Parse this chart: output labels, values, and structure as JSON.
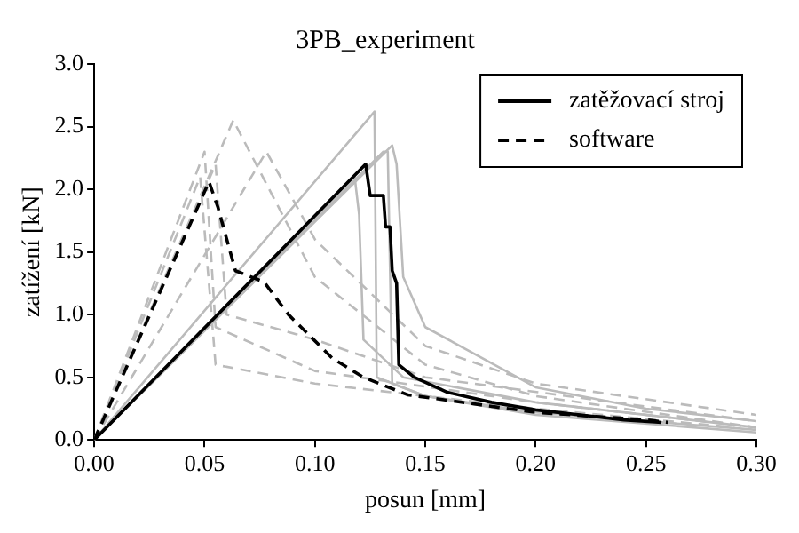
{
  "chart_data": {
    "type": "line",
    "title": "3PB_experiment",
    "xlabel": "posun [mm]",
    "ylabel": "zatížení [kN]",
    "xlim": [
      0,
      0.3
    ],
    "ylim": [
      0,
      3.0
    ],
    "xticks": [
      {
        "value": 0,
        "label": "0.00"
      },
      {
        "value": 0.05,
        "label": "0.05"
      },
      {
        "value": 0.1,
        "label": "0.10"
      },
      {
        "value": 0.15,
        "label": "0.15"
      },
      {
        "value": 0.2,
        "label": "0.20"
      },
      {
        "value": 0.25,
        "label": "0.25"
      },
      {
        "value": 0.3,
        "label": "0.30"
      }
    ],
    "yticks": [
      {
        "value": 0,
        "label": "0.0"
      },
      {
        "value": 0.5,
        "label": "0.5"
      },
      {
        "value": 1,
        "label": "1.0"
      },
      {
        "value": 1.5,
        "label": "1.5"
      },
      {
        "value": 2,
        "label": "2.0"
      },
      {
        "value": 2.5,
        "label": "2.5"
      },
      {
        "value": 3,
        "label": "3.0"
      }
    ],
    "grid": false,
    "legend": "top right",
    "marker": "none",
    "series": [
      {
        "color": "#bbbbbb",
        "line_style": "solid",
        "x": [
          0,
          0.127,
          0.128,
          0.15,
          0.2,
          0.3
        ],
        "values": [
          0,
          2.62,
          0.5,
          0.35,
          0.22,
          0.08
        ]
      },
      {
        "color": "#bbbbbb",
        "line_style": "solid",
        "x": [
          0,
          0.131,
          0.133,
          0.135,
          0.15,
          0.2,
          0.3
        ],
        "values": [
          0,
          2.3,
          2.3,
          0.45,
          0.35,
          0.2,
          0.06
        ]
      },
      {
        "color": "#bbbbbb",
        "line_style": "solid",
        "x": [
          0,
          0.135,
          0.137,
          0.14,
          0.15,
          0.2,
          0.25,
          0.3
        ],
        "values": [
          0,
          2.35,
          2.2,
          1.3,
          0.9,
          0.42,
          0.25,
          0.15
        ]
      },
      {
        "color": "#bbbbbb",
        "line_style": "solid",
        "x": [
          0,
          0.118,
          0.12,
          0.122,
          0.14,
          0.2,
          0.3
        ],
        "values": [
          0,
          2.1,
          1.8,
          0.8,
          0.5,
          0.3,
          0.1
        ]
      },
      {
        "color": "#bbbbbb",
        "line_style": "dashed",
        "x": [
          0,
          0.063,
          0.1,
          0.15,
          0.2,
          0.3
        ],
        "values": [
          0,
          2.55,
          1.3,
          0.6,
          0.35,
          0.1
        ]
      },
      {
        "color": "#bbbbbb",
        "line_style": "dashed",
        "x": [
          0,
          0.05,
          0.055,
          0.1,
          0.2,
          0.3
        ],
        "values": [
          0,
          2.3,
          0.9,
          0.55,
          0.3,
          0.1
        ]
      },
      {
        "color": "#bbbbbb",
        "line_style": "dashed",
        "x": [
          0,
          0.078,
          0.1,
          0.15,
          0.2,
          0.3
        ],
        "values": [
          0,
          2.3,
          1.6,
          0.75,
          0.45,
          0.2
        ]
      },
      {
        "color": "#bbbbbb",
        "line_style": "dashed",
        "x": [
          0,
          0.055,
          0.06,
          0.1,
          0.15,
          0.3
        ],
        "values": [
          0,
          2.2,
          1.0,
          0.8,
          0.5,
          0.15
        ]
      },
      {
        "color": "#bbbbbb",
        "line_style": "dashed",
        "x": [
          0,
          0.048,
          0.055,
          0.1,
          0.2,
          0.29
        ],
        "values": [
          0,
          2.1,
          0.6,
          0.45,
          0.25,
          0.1
        ]
      },
      {
        "name": "zatěžovací stroj",
        "color": "#000000",
        "line_style": "solid",
        "x": [
          0,
          0.123,
          0.125,
          0.131,
          0.132,
          0.134,
          0.135,
          0.137,
          0.138,
          0.145,
          0.16,
          0.18,
          0.2,
          0.22,
          0.24,
          0.257
        ],
        "values": [
          0,
          2.2,
          1.95,
          1.95,
          1.7,
          1.7,
          1.35,
          1.25,
          0.6,
          0.5,
          0.38,
          0.3,
          0.24,
          0.2,
          0.16,
          0.14
        ]
      },
      {
        "name": "software",
        "color": "#000000",
        "line_style": "dashed",
        "x": [
          0,
          0.052,
          0.056,
          0.064,
          0.077,
          0.088,
          0.108,
          0.122,
          0.142,
          0.2,
          0.25,
          0.26
        ],
        "values": [
          0,
          2.06,
          1.86,
          1.35,
          1.26,
          1.0,
          0.65,
          0.5,
          0.36,
          0.22,
          0.16,
          0.14
        ]
      }
    ]
  }
}
